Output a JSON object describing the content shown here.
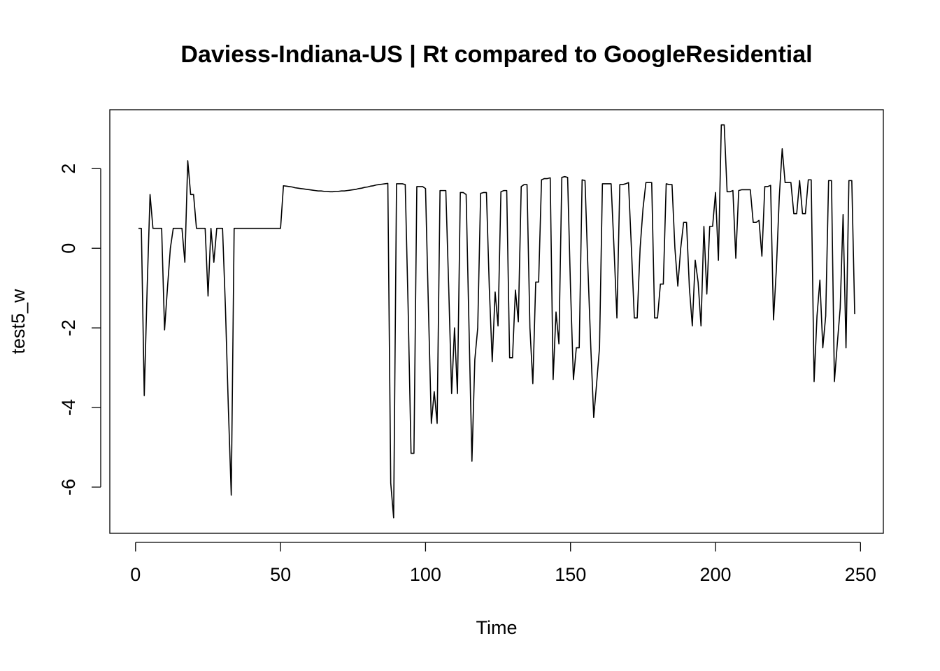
{
  "chart_data": {
    "type": "line",
    "title": "Daviess-Indiana-US | Rt compared to GoogleResidential",
    "x_label": "Time",
    "y_label": "test5_w",
    "color": "#000000",
    "xlim": [
      -8.88,
      257.88
    ],
    "ylim": [
      -7.16,
      3.48
    ],
    "xticks": [
      0,
      50,
      100,
      150,
      200,
      250
    ],
    "yticks": [
      -6,
      -4,
      -2,
      0,
      2
    ],
    "x": [
      1,
      2,
      3,
      4,
      5,
      6,
      7,
      8,
      9,
      10,
      11,
      12,
      13,
      14,
      15,
      16,
      17,
      18,
      19,
      20,
      21,
      22,
      23,
      24,
      25,
      26,
      27,
      28,
      29,
      30,
      31,
      32,
      33,
      34,
      35,
      36,
      37,
      38,
      39,
      40,
      41,
      42,
      43,
      44,
      45,
      46,
      47,
      48,
      49,
      50,
      51,
      52,
      53,
      54,
      55,
      56,
      57,
      58,
      59,
      60,
      61,
      62,
      63,
      64,
      65,
      66,
      67,
      68,
      69,
      70,
      71,
      72,
      73,
      74,
      75,
      76,
      77,
      78,
      79,
      80,
      81,
      82,
      83,
      84,
      85,
      86,
      87,
      88,
      89,
      90,
      91,
      92,
      93,
      94,
      95,
      96,
      97,
      98,
      99,
      100,
      101,
      102,
      103,
      104,
      105,
      106,
      107,
      108,
      109,
      110,
      111,
      112,
      113,
      114,
      115,
      116,
      117,
      118,
      119,
      120,
      121,
      122,
      123,
      124,
      125,
      126,
      127,
      128,
      129,
      130,
      131,
      132,
      133,
      134,
      135,
      136,
      137,
      138,
      139,
      140,
      141,
      142,
      143,
      144,
      145,
      146,
      147,
      148,
      149,
      150,
      151,
      152,
      153,
      154,
      155,
      156,
      157,
      158,
      159,
      160,
      161,
      162,
      163,
      164,
      165,
      166,
      167,
      168,
      169,
      170,
      171,
      172,
      173,
      174,
      175,
      176,
      177,
      178,
      179,
      180,
      181,
      182,
      183,
      184,
      185,
      186,
      187,
      188,
      189,
      190,
      191,
      192,
      193,
      194,
      195,
      196,
      197,
      198,
      199,
      200,
      201,
      202,
      203,
      204,
      205,
      206,
      207,
      208,
      209,
      210,
      211,
      212,
      213,
      214,
      215,
      216,
      217,
      218,
      219,
      220,
      221,
      222,
      223,
      224,
      225,
      226,
      227,
      228,
      229,
      230,
      231,
      232,
      233,
      234,
      235,
      236,
      237,
      238,
      239,
      240,
      241,
      242,
      243,
      244,
      245,
      246,
      247,
      248
    ],
    "values": [
      0.5,
      0.5,
      -3.7,
      -1.0,
      1.35,
      0.5,
      0.5,
      0.5,
      0.5,
      -2.05,
      -1.0,
      0,
      0.5,
      0.5,
      0.5,
      0.5,
      -0.35,
      2.2,
      1.35,
      1.35,
      0.5,
      0.5,
      0.5,
      0.5,
      -1.2,
      0.5,
      -0.35,
      0.5,
      0.5,
      0.5,
      -1.5,
      -4.0,
      -6.2,
      0.5,
      0.5,
      0.5,
      0.5,
      0.5,
      0.5,
      0.5,
      0.5,
      0.5,
      0.5,
      0.5,
      0.5,
      0.5,
      0.5,
      0.5,
      0.5,
      0.5,
      1.57,
      1.56,
      1.55,
      1.54,
      1.52,
      1.51,
      1.5,
      1.49,
      1.48,
      1.47,
      1.46,
      1.45,
      1.44,
      1.44,
      1.43,
      1.43,
      1.42,
      1.42,
      1.43,
      1.43,
      1.44,
      1.44,
      1.45,
      1.46,
      1.47,
      1.48,
      1.5,
      1.51,
      1.53,
      1.54,
      1.56,
      1.57,
      1.59,
      1.6,
      1.61,
      1.62,
      1.63,
      -5.9,
      -6.77,
      1.62,
      1.62,
      1.62,
      1.6,
      -1.5,
      -5.15,
      -5.15,
      1.55,
      1.55,
      1.55,
      1.5,
      -1.5,
      -4.4,
      -3.6,
      -4.4,
      1.45,
      1.45,
      1.45,
      -1.0,
      -3.65,
      -2.0,
      -3.65,
      1.4,
      1.4,
      1.35,
      -2.0,
      -5.35,
      -2.8,
      -2.0,
      1.38,
      1.4,
      1.4,
      -1.0,
      -2.85,
      -1.1,
      -1.95,
      1.42,
      1.45,
      1.45,
      -2.75,
      -2.75,
      -1.05,
      -1.85,
      1.55,
      1.6,
      1.6,
      -2.0,
      -3.4,
      -0.85,
      -0.85,
      1.72,
      1.75,
      1.75,
      1.77,
      -3.3,
      -1.6,
      -2.4,
      1.78,
      1.8,
      1.78,
      -1.0,
      -3.3,
      -2.5,
      -2.5,
      1.72,
      1.7,
      -0.5,
      -2.5,
      -4.25,
      -3.4,
      -2.5,
      1.62,
      1.62,
      1.62,
      1.62,
      0,
      -1.75,
      1.6,
      1.6,
      1.62,
      1.65,
      0,
      -1.75,
      -1.75,
      0,
      1.0,
      1.65,
      1.65,
      1.65,
      -1.75,
      -1.75,
      -0.9,
      -0.9,
      1.62,
      1.6,
      1.6,
      0,
      -0.95,
      0,
      0.65,
      0.65,
      -1.0,
      -1.95,
      -0.3,
      -0.85,
      -1.95,
      0.55,
      -1.15,
      0.55,
      0.55,
      1.4,
      -0.3,
      3.1,
      3.1,
      1.42,
      1.42,
      1.45,
      -0.25,
      1.45,
      1.47,
      1.47,
      1.47,
      1.47,
      0.65,
      0.65,
      0.7,
      -0.2,
      1.55,
      1.55,
      1.58,
      -1.8,
      -0.5,
      1.3,
      2.5,
      1.65,
      1.65,
      1.65,
      0.87,
      0.87,
      1.7,
      0.87,
      0.87,
      1.72,
      1.72,
      -3.35,
      -1.7,
      -0.8,
      -2.5,
      -1.7,
      1.7,
      1.7,
      -3.35,
      -2.4,
      -1.5,
      0.85,
      -2.5,
      1.7,
      1.7,
      -1.65
    ]
  }
}
